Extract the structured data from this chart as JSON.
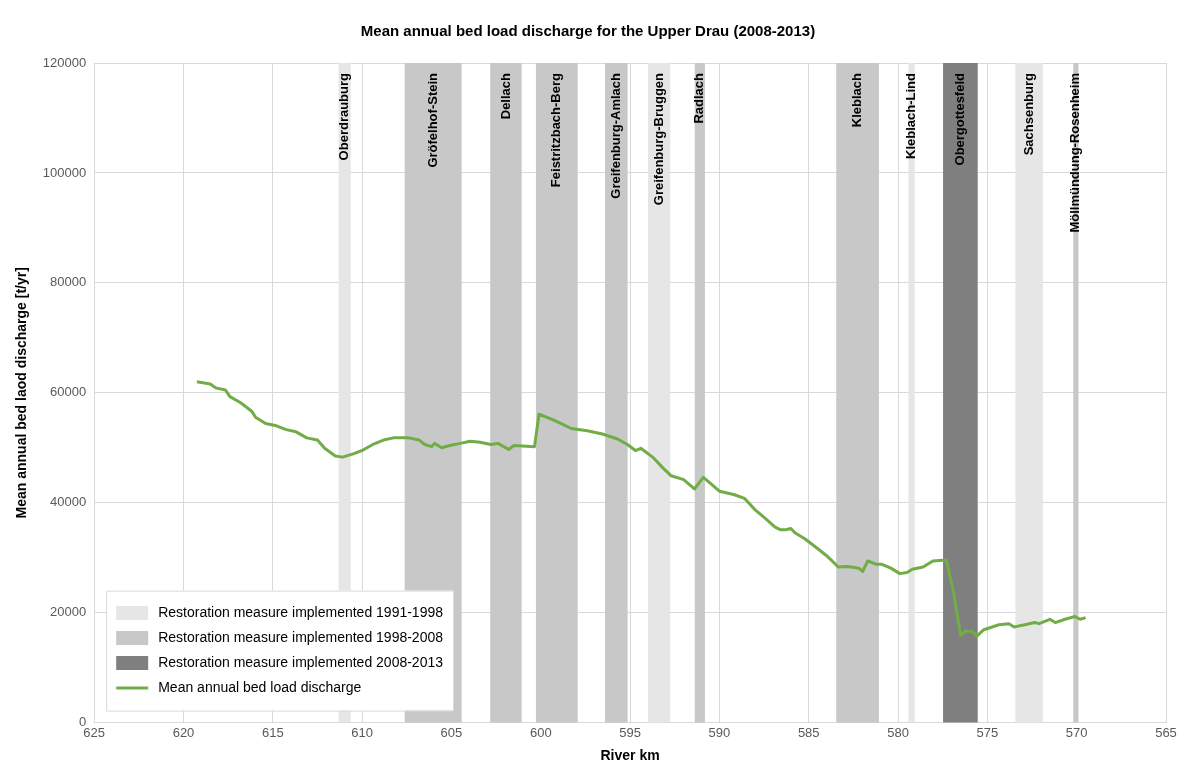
{
  "chart_data": {
    "type": "line",
    "title": "Mean annual bed load discharge for the Upper Drau (2008-2013)",
    "xlabel": "River km",
    "ylabel": "Mean annual bed laod discharge [t/yr]",
    "xlim": [
      625,
      565
    ],
    "xticks": [
      625,
      620,
      615,
      610,
      605,
      600,
      595,
      590,
      585,
      580,
      575,
      570,
      565
    ],
    "ylim": [
      0,
      120000
    ],
    "yticks": [
      0,
      20000,
      40000,
      60000,
      80000,
      100000,
      120000
    ],
    "grid": true,
    "legend": "bottom left",
    "marker": "none",
    "line_style": "solid",
    "series": [
      {
        "name": "Restoration measure implemented 1991-1998",
        "type": "area",
        "color": "#e6e6e6"
      },
      {
        "name": "Restoration measure implemented 1998-2008",
        "type": "area",
        "color": "#c8c8c8"
      },
      {
        "name": "Restoration measure implemented 2008-2013",
        "type": "area",
        "color": "#7f7f7f"
      },
      {
        "name": "Mean annual bed load discharge",
        "type": "line",
        "color": "#70ad47",
        "x": [
          619.25,
          618.5,
          618.2,
          617.65,
          617.4,
          616.8,
          616.2,
          615.95,
          615.4,
          614.8,
          614.25,
          613.7,
          613.1,
          612.5,
          612.1,
          611.5,
          611.1,
          610.5,
          610.0,
          609.4,
          608.8,
          608.25,
          607.4,
          606.8,
          606.5,
          606.1,
          605.95,
          605.55,
          605.1,
          604.5,
          603.95,
          603.4,
          602.8,
          602.4,
          601.8,
          601.5,
          600.35,
          600.1,
          599.4,
          598.85,
          598.3,
          597.4,
          596.55,
          595.7,
          595.15,
          594.7,
          594.4,
          593.7,
          593.15,
          592.7,
          592.0,
          591.4,
          590.9,
          590.6,
          590.0,
          589.2,
          588.6,
          588.0,
          587.45,
          586.9,
          586.6,
          586.3,
          586.0,
          585.75,
          585.2,
          584.6,
          584.05,
          583.75,
          583.35,
          582.9,
          582.6,
          582.2,
          581.98,
          581.7,
          581.2,
          580.9,
          580.4,
          579.9,
          579.5,
          579.2,
          578.6,
          578.05,
          577.3,
          576.9,
          576.5,
          576.2,
          575.8,
          575.6,
          575.2,
          574.35,
          573.8,
          573.5,
          572.9,
          572.35,
          572.1,
          571.5,
          571.2,
          570.65,
          570.1,
          569.8,
          569.5
        ],
        "values": [
          62000,
          61600,
          60900,
          60500,
          59300,
          58200,
          56700,
          55500,
          54400,
          54000,
          53300,
          52900,
          51800,
          51400,
          49900,
          48500,
          48300,
          48900,
          49500,
          50600,
          51400,
          51800,
          51800,
          51400,
          50600,
          50200,
          50800,
          50000,
          50400,
          50800,
          51200,
          51000,
          50600,
          50800,
          49700,
          50400,
          50200,
          56100,
          55200,
          54400,
          53500,
          53100,
          52500,
          51600,
          50600,
          49500,
          49900,
          48200,
          46300,
          44900,
          44200,
          42500,
          44600,
          43800,
          42100,
          41500,
          40800,
          38700,
          37200,
          35600,
          35100,
          35100,
          35300,
          34500,
          33400,
          31900,
          30500,
          29600,
          28300,
          28400,
          28300,
          28100,
          27500,
          29400,
          28800,
          28800,
          28100,
          27100,
          27300,
          27900,
          28300,
          29400,
          29600,
          23900,
          15900,
          16700,
          16500,
          15700,
          16900,
          17800,
          18000,
          17400,
          17800,
          18200,
          18000,
          18800,
          18200,
          18800,
          19300,
          18800,
          19100
        ]
      }
    ],
    "bands": [
      {
        "axis": "x",
        "from": 611.32,
        "to": 610.64,
        "label": "Oberdrauburg",
        "color": "#e6e6e6"
      },
      {
        "axis": "x",
        "from": 607.62,
        "to": 604.43,
        "label": "Gröfelhof-Stein",
        "color": "#c8c8c8"
      },
      {
        "axis": "x",
        "from": 602.83,
        "to": 601.07,
        "label": "Dellach",
        "color": "#c8c8c8"
      },
      {
        "axis": "x",
        "from": 600.27,
        "to": 597.93,
        "label": "Feistritzbach-Berg",
        "color": "#c8c8c8"
      },
      {
        "axis": "x",
        "from": 596.4,
        "to": 595.14,
        "label": "Greifenburg-Amlach",
        "color": "#c8c8c8"
      },
      {
        "axis": "x",
        "from": 594.0,
        "to": 592.75,
        "label": "Greifenburg-Bruggen",
        "color": "#e6e6e6"
      },
      {
        "axis": "x",
        "from": 591.38,
        "to": 590.81,
        "label": "Radlach",
        "color": "#c8c8c8"
      },
      {
        "axis": "x",
        "from": 583.46,
        "to": 581.07,
        "label": "Kleblach",
        "color": "#c8c8c8"
      },
      {
        "axis": "x",
        "from": 579.42,
        "to": 579.07,
        "label": "Kleblach-Lind",
        "color": "#e6e6e6"
      },
      {
        "axis": "x",
        "from": 577.48,
        "to": 575.54,
        "label": "Obergottesfeld",
        "color": "#7f7f7f"
      },
      {
        "axis": "x",
        "from": 573.43,
        "to": 571.89,
        "label": "Sachsenburg",
        "color": "#e6e6e6"
      },
      {
        "axis": "x",
        "from": 570.19,
        "to": 569.9,
        "label": "Möllmündung-Rosenheim",
        "color": "#c8c8c8"
      }
    ]
  }
}
